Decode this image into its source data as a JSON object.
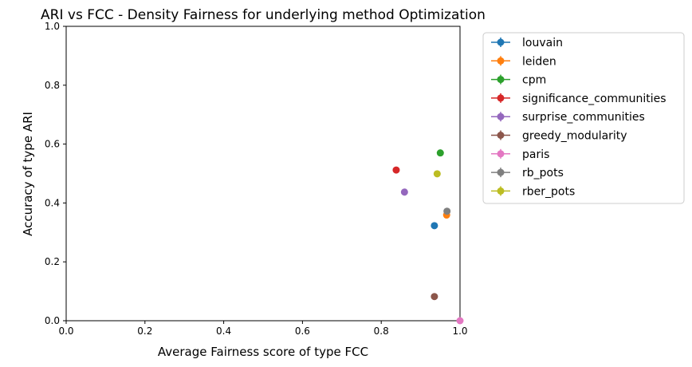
{
  "chart_data": {
    "type": "scatter",
    "title": "ARI vs FCC - Density Fairness for underlying method Optimization",
    "xlabel": "Average Fairness score of type FCC",
    "ylabel": "Accuracy of type ARI",
    "xlim": [
      0,
      1
    ],
    "ylim": [
      0,
      1
    ],
    "xticks": [
      0.0,
      0.2,
      0.4,
      0.6,
      0.8,
      1.0
    ],
    "xtick_labels": [
      "0.0",
      "0.2",
      "0.4",
      "0.6",
      "0.8",
      "1.0"
    ],
    "yticks": [
      0.0,
      0.2,
      0.4,
      0.6,
      0.8,
      1.0
    ],
    "ytick_labels": [
      "0.0",
      "0.2",
      "0.4",
      "0.6",
      "0.8",
      "1.0"
    ],
    "grid": false,
    "legend_position": "outside-right-top",
    "series": [
      {
        "name": "louvain",
        "color": "#1f77b4",
        "x": 0.935,
        "y": 0.323
      },
      {
        "name": "leiden",
        "color": "#ff7f0e",
        "x": 0.966,
        "y": 0.359
      },
      {
        "name": "cpm",
        "color": "#2ca02c",
        "x": 0.95,
        "y": 0.57
      },
      {
        "name": "significance_communities",
        "color": "#d62728",
        "x": 0.838,
        "y": 0.512
      },
      {
        "name": "surprise_communities",
        "color": "#9467bd",
        "x": 0.859,
        "y": 0.437
      },
      {
        "name": "greedy_modularity",
        "color": "#8c564b",
        "x": 0.935,
        "y": 0.082
      },
      {
        "name": "paris",
        "color": "#e377c2",
        "x": 1.0,
        "y": 0.0
      },
      {
        "name": "rb_pots",
        "color": "#7f7f7f",
        "x": 0.967,
        "y": 0.372
      },
      {
        "name": "rber_pots",
        "color": "#bcbd22",
        "x": 0.942,
        "y": 0.499
      }
    ]
  }
}
